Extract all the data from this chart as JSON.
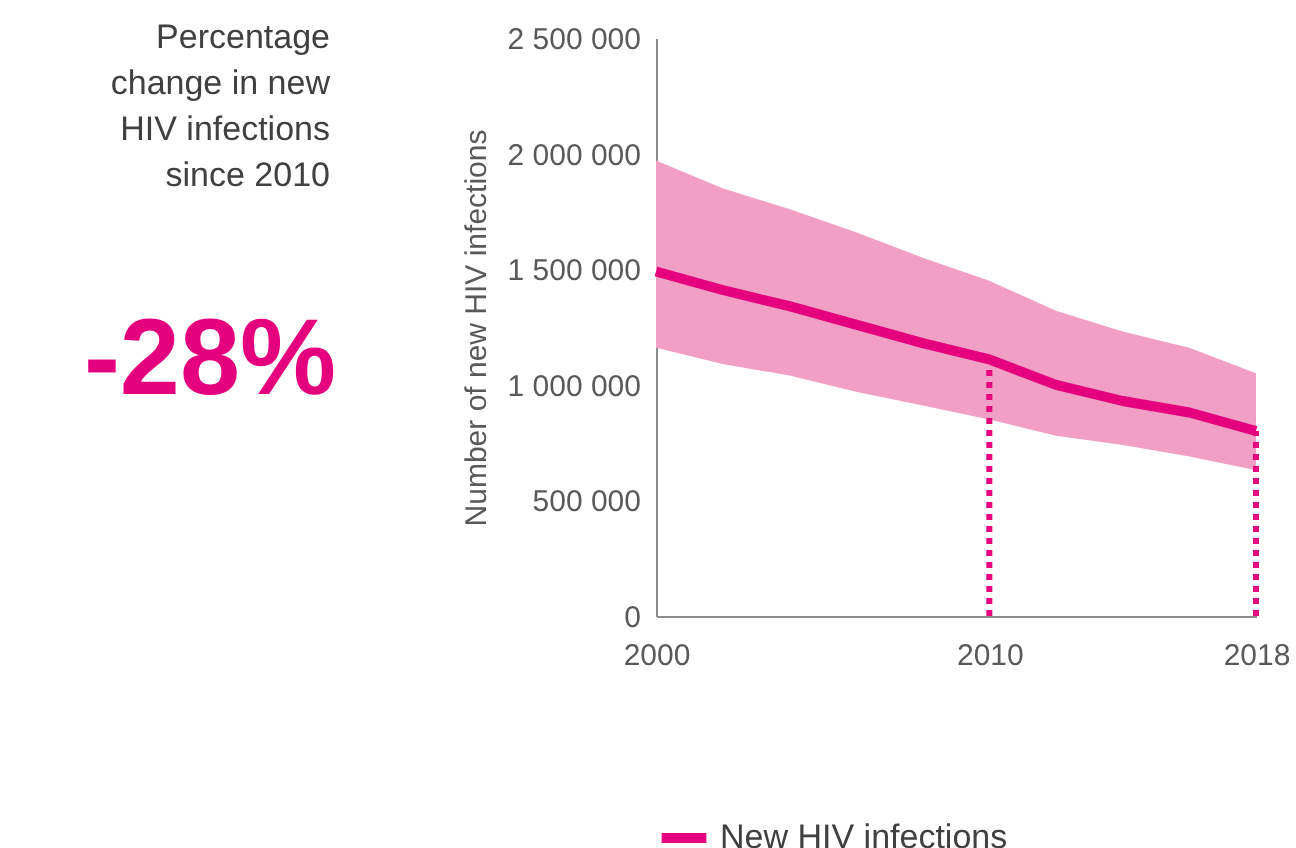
{
  "chart_data": {
    "type": "line",
    "ylabel": "Number of new HIV infections",
    "x": [
      2000,
      2002,
      2004,
      2006,
      2008,
      2010,
      2012,
      2014,
      2016,
      2018
    ],
    "series": [
      {
        "name": "New HIV infections",
        "color": "#e5007e",
        "values": [
          1490000,
          1410000,
          1340000,
          1260000,
          1180000,
          1110000,
          1000000,
          930000,
          880000,
          800000
        ],
        "lower": [
          1160000,
          1090000,
          1040000,
          970000,
          910000,
          850000,
          780000,
          740000,
          690000,
          630000
        ],
        "upper": [
          1970000,
          1850000,
          1760000,
          1660000,
          1550000,
          1450000,
          1320000,
          1230000,
          1160000,
          1050000
        ]
      }
    ],
    "xlim": [
      2000,
      2018
    ],
    "xticks": [
      2000,
      2010,
      2018
    ],
    "ylim": [
      0,
      2500000
    ],
    "yticks": [
      {
        "value": 0,
        "label": "0"
      },
      {
        "value": 500000,
        "label": "500 000"
      },
      {
        "value": 1000000,
        "label": "1 000 000"
      },
      {
        "value": 1500000,
        "label": "1 500 000"
      },
      {
        "value": 2000000,
        "label": "2 000 000"
      },
      {
        "value": 2500000,
        "label": "2 500 000"
      }
    ],
    "ref_lines": [
      {
        "axis": "x",
        "value": 2010,
        "color": "#e5007e",
        "line_style": "dotted"
      },
      {
        "axis": "x",
        "value": 2018,
        "color": "#e5007e",
        "line_style": "dotted"
      }
    ],
    "annotations": [
      "Percentage\nchange in new\nHIV infections\nsince 2010",
      "-28%"
    ],
    "grid": false,
    "legend": "bottom",
    "marker": "none",
    "line_style": "solid"
  }
}
